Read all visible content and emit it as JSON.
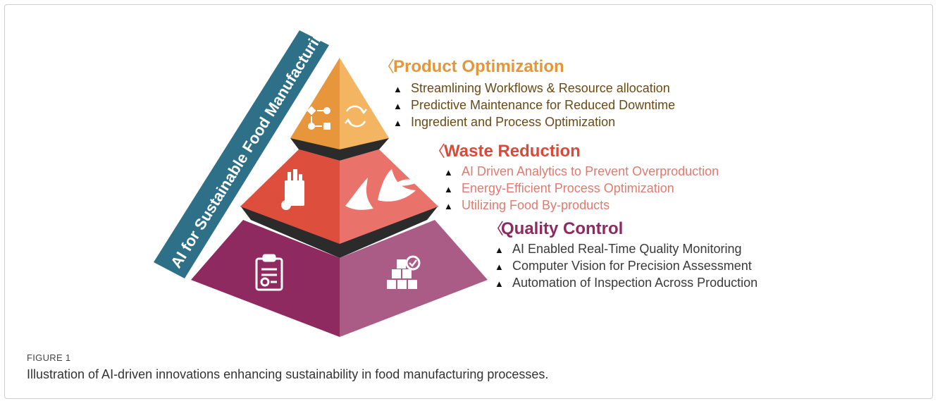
{
  "banner": {
    "text": "AI for Sustainable Food Manufacturing",
    "color": "#2E7088"
  },
  "tiers": [
    {
      "title": "Product Optimization",
      "title_color": "#E5963A",
      "text_color": "#6B4A14",
      "bullets": [
        "Streamlining Workflows & Resource allocation",
        "Predictive Maintenance for Reduced Downtime",
        "Ingredient and Process Optimization"
      ],
      "icons": [
        "workflow-icon",
        "refresh-cycle-icon"
      ],
      "colors": {
        "left": "#E8963B",
        "right": "#F3B562"
      }
    },
    {
      "title": "Waste Reduction",
      "title_color": "#D94A3A",
      "text_color": "#E27A6E",
      "bullets": [
        "AI Driven Analytics to Prevent Overproduction",
        "Energy-Efficient Process Optimization",
        "Utilizing Food By-products"
      ],
      "icons": [
        "grocery-bag-icon",
        "banana-peel-icon"
      ],
      "colors": {
        "left": "#DD4E3D",
        "right": "#E9736A"
      }
    },
    {
      "title": "Quality Control",
      "title_color": "#8E2A60",
      "text_color": "#3a3a3a",
      "bullets": [
        "AI Enabled Real-Time Quality Monitoring",
        "Computer Vision for Precision Assessment",
        "Automation of Inspection Across Production"
      ],
      "icons": [
        "certificate-clipboard-icon",
        "boxes-check-icon"
      ],
      "colors": {
        "left": "#8E2A60",
        "right": "#AA5B86"
      }
    }
  ],
  "figure": {
    "label": "FIGURE 1",
    "caption": "Illustration of AI-driven innovations enhancing sustainability in food manufacturing processes."
  }
}
